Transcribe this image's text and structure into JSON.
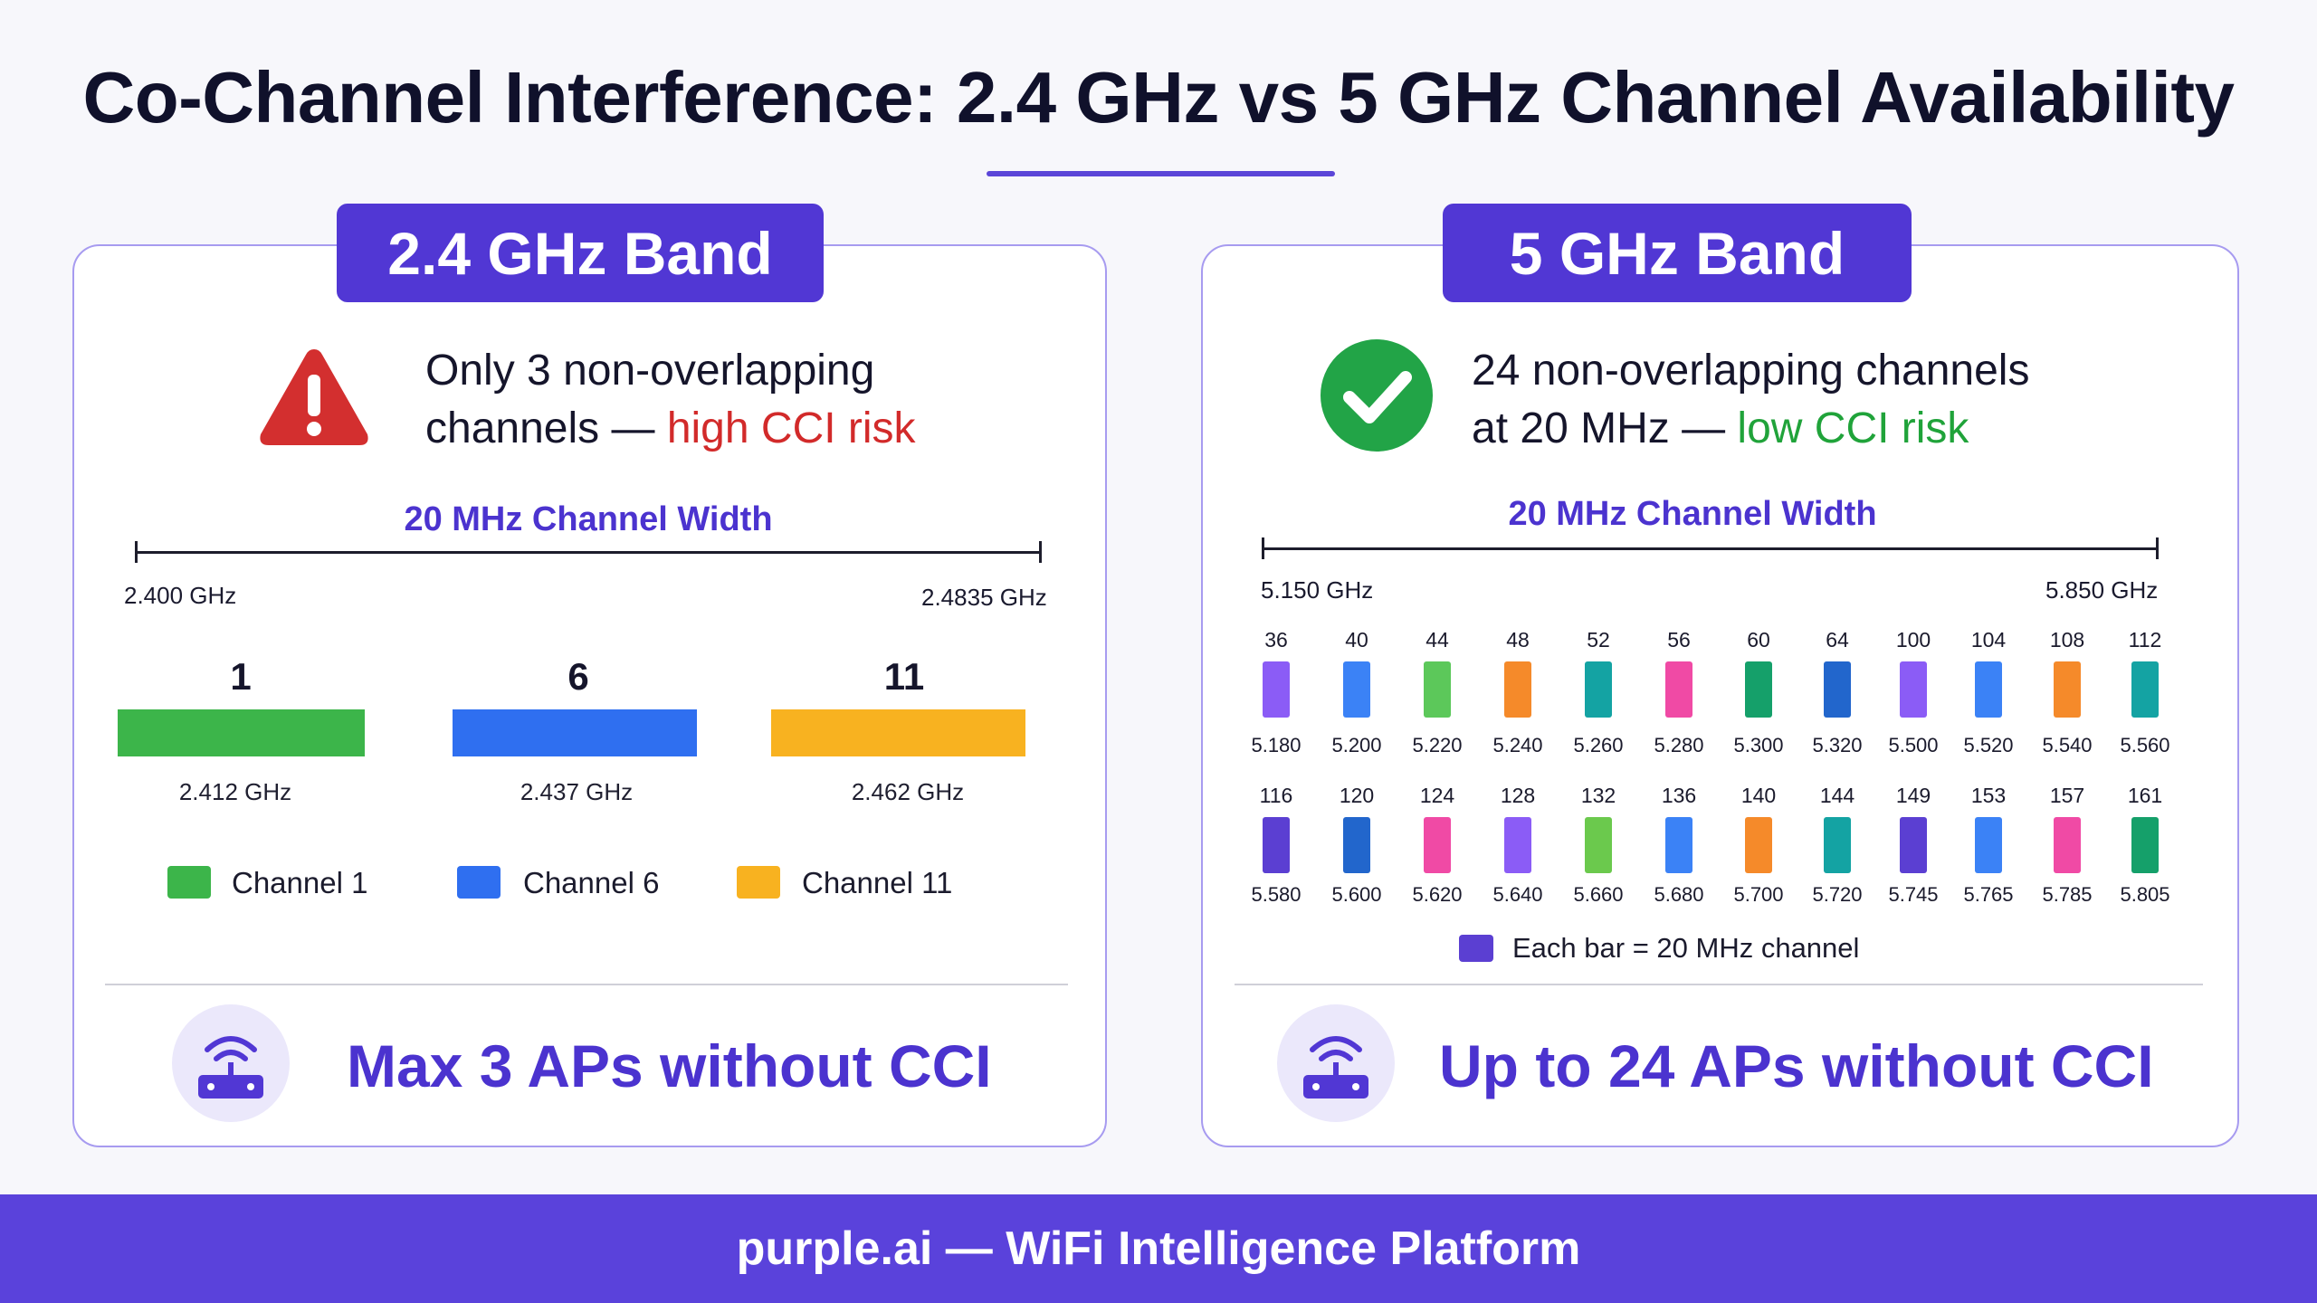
{
  "title": "Co-Channel Interference: 2.4 GHz vs 5 GHz Channel Availability",
  "left": {
    "band_label": "2.4 GHz Band",
    "status_line1": "Only 3 non-overlapping",
    "status_line2_prefix": "channels — ",
    "status_line2_risk": "high CCI risk",
    "width_label": "20 MHz Channel Width",
    "range_start": "2.400 GHz",
    "range_end": "2.4835 GHz",
    "channels": [
      {
        "number": "1",
        "freq": "2.412 GHz",
        "color": "#3cb54a"
      },
      {
        "number": "6",
        "freq": "2.437 GHz",
        "color": "#2f6ff0"
      },
      {
        "number": "11",
        "freq": "2.462 GHz",
        "color": "#f8b220"
      }
    ],
    "legend": [
      "Channel 1",
      "Channel 6",
      "Channel 11"
    ],
    "max_text": "Max 3 APs without CCI"
  },
  "right": {
    "band_label": "5 GHz Band",
    "status_line1": "24 non-overlapping channels",
    "status_line2_prefix": "at 20 MHz — ",
    "status_line2_risk": "low CCI risk",
    "width_label": "20 MHz Channel Width",
    "range_start": "5.150 GHz",
    "range_end": "5.850 GHz",
    "row1": [
      {
        "number": "36",
        "freq": "5.180",
        "color": "#8b5cf6"
      },
      {
        "number": "40",
        "freq": "5.200",
        "color": "#3b82f6"
      },
      {
        "number": "44",
        "freq": "5.220",
        "color": "#5cc85a"
      },
      {
        "number": "48",
        "freq": "5.240",
        "color": "#f58a2a"
      },
      {
        "number": "52",
        "freq": "5.260",
        "color": "#14a3a3"
      },
      {
        "number": "56",
        "freq": "5.280",
        "color": "#f04aa5"
      },
      {
        "number": "60",
        "freq": "5.300",
        "color": "#15a06a"
      },
      {
        "number": "64",
        "freq": "5.320",
        "color": "#2266cc"
      },
      {
        "number": "100",
        "freq": "5.500",
        "color": "#8b5cf6"
      },
      {
        "number": "104",
        "freq": "5.520",
        "color": "#3b82f6"
      },
      {
        "number": "108",
        "freq": "5.540",
        "color": "#f58a2a"
      },
      {
        "number": "112",
        "freq": "5.560",
        "color": "#14a3a3"
      }
    ],
    "row2": [
      {
        "number": "116",
        "freq": "5.580",
        "color": "#5b3fd2"
      },
      {
        "number": "120",
        "freq": "5.600",
        "color": "#2266cc"
      },
      {
        "number": "124",
        "freq": "5.620",
        "color": "#f04aa5"
      },
      {
        "number": "128",
        "freq": "5.640",
        "color": "#8b5cf6"
      },
      {
        "number": "132",
        "freq": "5.660",
        "color": "#6bc94d"
      },
      {
        "number": "136",
        "freq": "5.680",
        "color": "#3b82f6"
      },
      {
        "number": "140",
        "freq": "5.700",
        "color": "#f58a2a"
      },
      {
        "number": "144",
        "freq": "5.720",
        "color": "#14a3a3"
      },
      {
        "number": "149",
        "freq": "5.745",
        "color": "#5b3fd2"
      },
      {
        "number": "153",
        "freq": "5.765",
        "color": "#3b82f6"
      },
      {
        "number": "157",
        "freq": "5.785",
        "color": "#f04aa5"
      },
      {
        "number": "161",
        "freq": "5.805",
        "color": "#15a06a"
      }
    ],
    "legend_label": "Each bar = 20 MHz channel",
    "legend_color": "#5b3fd2",
    "max_text": "Up to 24 APs without CCI"
  },
  "footer": "purple.ai — WiFi Intelligence Platform",
  "icons": {
    "left_status": "warning-triangle-icon",
    "right_status": "check-circle-icon",
    "router": "wifi-router-icon"
  },
  "colors": {
    "accent": "#5137d4",
    "risk_high": "#d22a2a",
    "risk_low": "#20a33a"
  }
}
